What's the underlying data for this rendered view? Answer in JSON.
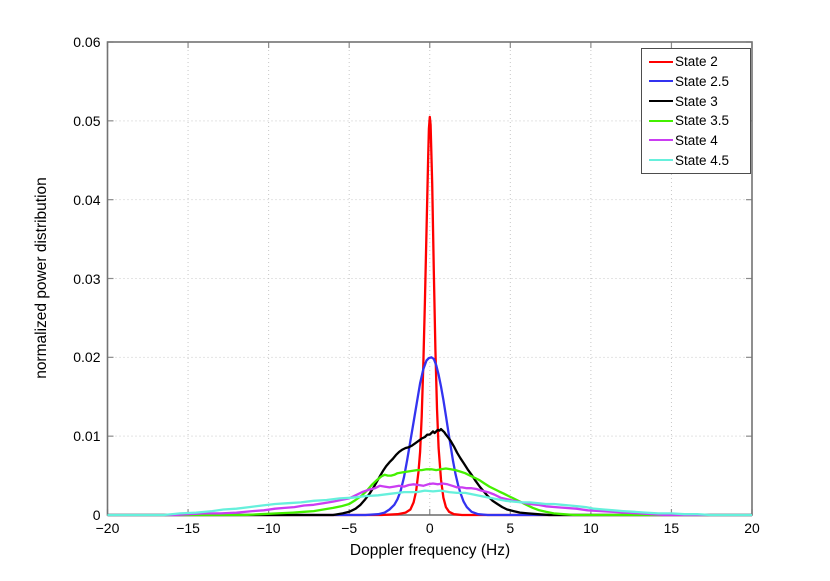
{
  "chart_data": {
    "type": "line",
    "title": "",
    "xlabel": "Doppler frequency (Hz)",
    "ylabel": "normalized power distribution",
    "xlim": [
      -20,
      20
    ],
    "ylim": [
      0,
      0.06
    ],
    "grid": true,
    "legend_position": "top-right",
    "xticks": [
      -20,
      -15,
      -10,
      -5,
      0,
      5,
      10,
      15,
      20
    ],
    "xtick_labels": [
      "−20",
      "−15",
      "−10",
      "−5",
      "0",
      "5",
      "10",
      "15",
      "20"
    ],
    "yticks": [
      0,
      0.01,
      0.02,
      0.03,
      0.04,
      0.05,
      0.06
    ],
    "ytick_labels": [
      "0",
      "0.01",
      "0.02",
      "0.03",
      "0.04",
      "0.05",
      "0.06"
    ],
    "colors": {
      "axis": "#737373",
      "tick": "#8c8c8c",
      "grid": "#c8c8c8",
      "legend_border": "#4d4d4d",
      "background": "#ffffff"
    },
    "series": [
      {
        "name": "State 2",
        "color": "#ff0000",
        "points": [
          [
            -20,
            0
          ],
          [
            -3,
            0
          ],
          [
            -2,
            0.0001
          ],
          [
            -1.5,
            0.0003
          ],
          [
            -1.2,
            0.0007
          ],
          [
            -1.0,
            0.0016
          ],
          [
            -0.85,
            0.003
          ],
          [
            -0.7,
            0.0055
          ],
          [
            -0.6,
            0.008
          ],
          [
            -0.5,
            0.0125
          ],
          [
            -0.4,
            0.019
          ],
          [
            -0.3,
            0.027
          ],
          [
            -0.2,
            0.036
          ],
          [
            -0.1,
            0.045
          ],
          [
            -0.05,
            0.049
          ],
          [
            0,
            0.0505
          ],
          [
            0.05,
            0.0495
          ],
          [
            0.15,
            0.042
          ],
          [
            0.25,
            0.031
          ],
          [
            0.35,
            0.021
          ],
          [
            0.45,
            0.0135
          ],
          [
            0.55,
            0.0085
          ],
          [
            0.7,
            0.0045
          ],
          [
            0.85,
            0.0022
          ],
          [
            1.0,
            0.001
          ],
          [
            1.2,
            0.0004
          ],
          [
            1.5,
            0.0001
          ],
          [
            2,
            0
          ],
          [
            20,
            0
          ]
        ]
      },
      {
        "name": "State 2.5",
        "color": "#3333f0",
        "points": [
          [
            -20,
            0
          ],
          [
            -4,
            0
          ],
          [
            -3.2,
            0.0001
          ],
          [
            -2.8,
            0.0003
          ],
          [
            -2.5,
            0.0007
          ],
          [
            -2.2,
            0.0013
          ],
          [
            -2.0,
            0.002
          ],
          [
            -1.8,
            0.0031
          ],
          [
            -1.6,
            0.0048
          ],
          [
            -1.4,
            0.007
          ],
          [
            -1.2,
            0.0094
          ],
          [
            -1.0,
            0.0118
          ],
          [
            -0.8,
            0.0143
          ],
          [
            -0.6,
            0.0167
          ],
          [
            -0.4,
            0.0185
          ],
          [
            -0.2,
            0.0196
          ],
          [
            -0.05,
            0.0199
          ],
          [
            0.1,
            0.02
          ],
          [
            0.25,
            0.0198
          ],
          [
            0.4,
            0.019
          ],
          [
            0.55,
            0.0178
          ],
          [
            0.7,
            0.0163
          ],
          [
            0.85,
            0.0146
          ],
          [
            1.0,
            0.0126
          ],
          [
            1.15,
            0.0106
          ],
          [
            1.3,
            0.0087
          ],
          [
            1.45,
            0.0068
          ],
          [
            1.6,
            0.0052
          ],
          [
            1.75,
            0.0039
          ],
          [
            1.9,
            0.0028
          ],
          [
            2.1,
            0.0017
          ],
          [
            2.3,
            0.001
          ],
          [
            2.6,
            0.0004
          ],
          [
            3.0,
            0.0001
          ],
          [
            3.6,
            0
          ],
          [
            20,
            0
          ]
        ]
      },
      {
        "name": "State 3",
        "color": "#000000",
        "points": [
          [
            -20,
            0
          ],
          [
            -6,
            0
          ],
          [
            -5.4,
            0.0002
          ],
          [
            -5.0,
            0.0004
          ],
          [
            -4.6,
            0.0008
          ],
          [
            -4.3,
            0.0013
          ],
          [
            -4.0,
            0.002
          ],
          [
            -3.7,
            0.0028
          ],
          [
            -3.4,
            0.0038
          ],
          [
            -3.1,
            0.0049
          ],
          [
            -2.9,
            0.0056
          ],
          [
            -2.7,
            0.0062
          ],
          [
            -2.5,
            0.0067
          ],
          [
            -2.3,
            0.0071
          ],
          [
            -2.1,
            0.0076
          ],
          [
            -1.9,
            0.008
          ],
          [
            -1.7,
            0.0083
          ],
          [
            -1.5,
            0.0085
          ],
          [
            -1.3,
            0.0086
          ],
          [
            -1.1,
            0.0088
          ],
          [
            -0.9,
            0.0091
          ],
          [
            -0.7,
            0.0094
          ],
          [
            -0.5,
            0.0097
          ],
          [
            -0.3,
            0.0099
          ],
          [
            -0.15,
            0.0102
          ],
          [
            0,
            0.0102
          ],
          [
            0.1,
            0.0104
          ],
          [
            0.2,
            0.0106
          ],
          [
            0.3,
            0.0104
          ],
          [
            0.4,
            0.0106
          ],
          [
            0.5,
            0.0108
          ],
          [
            0.6,
            0.0107
          ],
          [
            0.7,
            0.0109
          ],
          [
            0.8,
            0.0107
          ],
          [
            0.9,
            0.0105
          ],
          [
            1.0,
            0.0102
          ],
          [
            1.15,
            0.0098
          ],
          [
            1.3,
            0.0094
          ],
          [
            1.5,
            0.0087
          ],
          [
            1.7,
            0.0079
          ],
          [
            1.9,
            0.0072
          ],
          [
            2.1,
            0.0066
          ],
          [
            2.35,
            0.0058
          ],
          [
            2.6,
            0.0051
          ],
          [
            2.85,
            0.0043
          ],
          [
            3.1,
            0.0036
          ],
          [
            3.35,
            0.003
          ],
          [
            3.6,
            0.0024
          ],
          [
            3.9,
            0.0018
          ],
          [
            4.2,
            0.0014
          ],
          [
            4.5,
            0.001
          ],
          [
            4.8,
            0.0007
          ],
          [
            5.2,
            0.0005
          ],
          [
            5.6,
            0.0003
          ],
          [
            6.1,
            0.0002
          ],
          [
            6.7,
            0.0001
          ],
          [
            7.4,
            0
          ],
          [
            20,
            0
          ]
        ]
      },
      {
        "name": "State 3.5",
        "color": "#44f000",
        "points": [
          [
            -20,
            0
          ],
          [
            -11.5,
            0
          ],
          [
            -10.5,
            0.0001
          ],
          [
            -9.5,
            0.0002
          ],
          [
            -8.5,
            0.0003
          ],
          [
            -7.8,
            0.0004
          ],
          [
            -7.2,
            0.0005
          ],
          [
            -6.6,
            0.0007
          ],
          [
            -6.0,
            0.0009
          ],
          [
            -5.5,
            0.0011
          ],
          [
            -5.0,
            0.0014
          ],
          [
            -4.6,
            0.0019
          ],
          [
            -4.2,
            0.0025
          ],
          [
            -3.9,
            0.0031
          ],
          [
            -3.6,
            0.0038
          ],
          [
            -3.3,
            0.0044
          ],
          [
            -3.0,
            0.0049
          ],
          [
            -2.8,
            0.0051
          ],
          [
            -2.6,
            0.005
          ],
          [
            -2.4,
            0.005
          ],
          [
            -2.2,
            0.0051
          ],
          [
            -2.0,
            0.0053
          ],
          [
            -1.7,
            0.0054
          ],
          [
            -1.4,
            0.0055
          ],
          [
            -1.1,
            0.0056
          ],
          [
            -0.8,
            0.0057
          ],
          [
            -0.5,
            0.0057
          ],
          [
            -0.2,
            0.0058
          ],
          [
            0.1,
            0.0058
          ],
          [
            0.4,
            0.0057
          ],
          [
            0.7,
            0.0058
          ],
          [
            1.0,
            0.0059
          ],
          [
            1.3,
            0.0058
          ],
          [
            1.6,
            0.0057
          ],
          [
            1.9,
            0.0055
          ],
          [
            2.2,
            0.0053
          ],
          [
            2.5,
            0.005
          ],
          [
            2.8,
            0.0047
          ],
          [
            3.1,
            0.0044
          ],
          [
            3.4,
            0.004
          ],
          [
            3.7,
            0.0036
          ],
          [
            4.0,
            0.0033
          ],
          [
            4.3,
            0.003
          ],
          [
            4.6,
            0.0027
          ],
          [
            4.9,
            0.0024
          ],
          [
            5.2,
            0.0021
          ],
          [
            5.6,
            0.0017
          ],
          [
            6.0,
            0.0013
          ],
          [
            6.4,
            0.0009
          ],
          [
            6.8,
            0.0006
          ],
          [
            7.2,
            0.0004
          ],
          [
            7.7,
            0.0002
          ],
          [
            8.3,
            0.0001
          ],
          [
            9.0,
            0
          ],
          [
            20,
            0
          ]
        ]
      },
      {
        "name": "State 4",
        "color": "#cb3df2",
        "points": [
          [
            -20,
            0
          ],
          [
            -15.8,
            0
          ],
          [
            -15,
            0.0001
          ],
          [
            -14,
            0.0002
          ],
          [
            -13,
            0.0002
          ],
          [
            -12,
            0.0003
          ],
          [
            -11,
            0.0005
          ],
          [
            -10.3,
            0.0006
          ],
          [
            -9.6,
            0.0008
          ],
          [
            -9.0,
            0.0009
          ],
          [
            -8.4,
            0.001
          ],
          [
            -7.8,
            0.0012
          ],
          [
            -7.2,
            0.0013
          ],
          [
            -6.6,
            0.0015
          ],
          [
            -6.0,
            0.0017
          ],
          [
            -5.5,
            0.0019
          ],
          [
            -5.0,
            0.0021
          ],
          [
            -4.6,
            0.0025
          ],
          [
            -4.2,
            0.0029
          ],
          [
            -3.8,
            0.0032
          ],
          [
            -3.4,
            0.0034
          ],
          [
            -3.1,
            0.0037
          ],
          [
            -2.8,
            0.0036
          ],
          [
            -2.5,
            0.0035
          ],
          [
            -2.2,
            0.0036
          ],
          [
            -1.9,
            0.0037
          ],
          [
            -1.6,
            0.0036
          ],
          [
            -1.3,
            0.0038
          ],
          [
            -1.0,
            0.0039
          ],
          [
            -0.7,
            0.0038
          ],
          [
            -0.4,
            0.0037
          ],
          [
            -0.1,
            0.0039
          ],
          [
            0.2,
            0.004
          ],
          [
            0.5,
            0.0039
          ],
          [
            0.8,
            0.004
          ],
          [
            1.1,
            0.0039
          ],
          [
            1.4,
            0.0037
          ],
          [
            1.7,
            0.0035
          ],
          [
            2.0,
            0.0035
          ],
          [
            2.3,
            0.0034
          ],
          [
            2.6,
            0.0034
          ],
          [
            2.9,
            0.0033
          ],
          [
            3.2,
            0.0031
          ],
          [
            3.6,
            0.0029
          ],
          [
            4.0,
            0.0026
          ],
          [
            4.4,
            0.0022
          ],
          [
            4.8,
            0.002
          ],
          [
            5.2,
            0.0018
          ],
          [
            5.7,
            0.0016
          ],
          [
            6.2,
            0.0014
          ],
          [
            6.7,
            0.0013
          ],
          [
            7.2,
            0.0011
          ],
          [
            7.8,
            0.001
          ],
          [
            8.4,
            0.0009
          ],
          [
            9.1,
            0.0008
          ],
          [
            9.8,
            0.0006
          ],
          [
            10.6,
            0.0005
          ],
          [
            11.4,
            0.0004
          ],
          [
            12.2,
            0.0003
          ],
          [
            13.0,
            0.0002
          ],
          [
            13.8,
            0.0001
          ],
          [
            14.6,
            0
          ],
          [
            20,
            0
          ]
        ]
      },
      {
        "name": "State 4.5",
        "color": "#66f0dc",
        "points": [
          [
            -20,
            0
          ],
          [
            -16.5,
            0
          ],
          [
            -15.5,
            0.0002
          ],
          [
            -14.5,
            0.0003
          ],
          [
            -13.5,
            0.0005
          ],
          [
            -12.8,
            0.0007
          ],
          [
            -12,
            0.0008
          ],
          [
            -11.2,
            0.001
          ],
          [
            -10.4,
            0.0012
          ],
          [
            -9.6,
            0.0014
          ],
          [
            -8.8,
            0.0015
          ],
          [
            -8.0,
            0.0016
          ],
          [
            -7.2,
            0.0018
          ],
          [
            -6.4,
            0.0019
          ],
          [
            -5.6,
            0.0021
          ],
          [
            -4.8,
            0.0022
          ],
          [
            -4.0,
            0.0024
          ],
          [
            -3.2,
            0.0025
          ],
          [
            -2.4,
            0.0027
          ],
          [
            -1.6,
            0.0029
          ],
          [
            -0.8,
            0.0029
          ],
          [
            -0.3,
            0.0031
          ],
          [
            0.2,
            0.003
          ],
          [
            0.7,
            0.0031
          ],
          [
            1.2,
            0.0029
          ],
          [
            1.7,
            0.0028
          ],
          [
            2.2,
            0.0028
          ],
          [
            2.7,
            0.0026
          ],
          [
            3.2,
            0.0024
          ],
          [
            3.7,
            0.0022
          ],
          [
            4.2,
            0.002
          ],
          [
            4.7,
            0.0018
          ],
          [
            5.2,
            0.0017
          ],
          [
            5.7,
            0.0016
          ],
          [
            6.2,
            0.0016
          ],
          [
            6.7,
            0.0015
          ],
          [
            7.2,
            0.0014
          ],
          [
            7.7,
            0.0014
          ],
          [
            8.2,
            0.0013
          ],
          [
            8.7,
            0.0012
          ],
          [
            9.2,
            0.0011
          ],
          [
            9.7,
            0.001
          ],
          [
            10.2,
            0.0008
          ],
          [
            10.8,
            0.0007
          ],
          [
            11.4,
            0.0006
          ],
          [
            12.0,
            0.0005
          ],
          [
            12.7,
            0.0004
          ],
          [
            13.4,
            0.0003
          ],
          [
            14.2,
            0.0002
          ],
          [
            15.0,
            0.0002
          ],
          [
            15.8,
            0.0001
          ],
          [
            16.6,
            0.0001
          ],
          [
            17.4,
            0
          ],
          [
            20,
            0
          ]
        ]
      }
    ]
  }
}
